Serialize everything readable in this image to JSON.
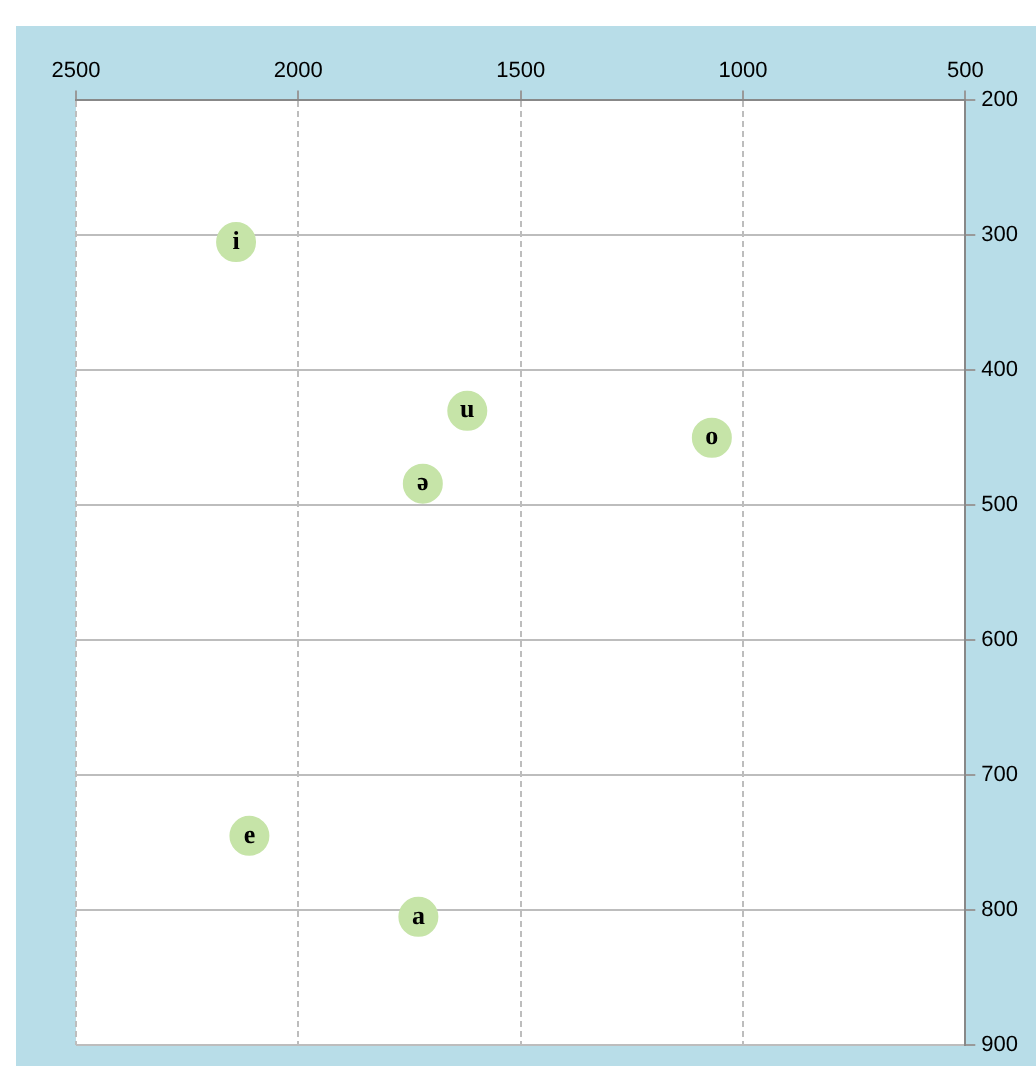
{
  "chart_data": {
    "type": "scatter",
    "marker": "circle",
    "grid": true,
    "legend": false,
    "xlim": [
      2500,
      500
    ],
    "xticks": [
      2500,
      2000,
      1500,
      1000,
      500
    ],
    "ylim": [
      900,
      200
    ],
    "yticks": [
      200,
      300,
      400,
      500,
      600,
      700,
      800,
      900
    ],
    "series": [
      {
        "name": "i",
        "color": "#c6e4a8",
        "x": [
          2140
        ],
        "values": [
          305
        ]
      },
      {
        "name": "u",
        "color": "#c6e4a8",
        "x": [
          1620
        ],
        "values": [
          430
        ]
      },
      {
        "name": "o",
        "color": "#c6e4a8",
        "x": [
          1070
        ],
        "values": [
          450
        ]
      },
      {
        "name": "ə",
        "color": "#c6e4a8",
        "x": [
          1720
        ],
        "values": [
          484
        ]
      },
      {
        "name": "e",
        "color": "#c6e4a8",
        "x": [
          2110
        ],
        "values": [
          745
        ]
      },
      {
        "name": "a",
        "color": "#c6e4a8",
        "x": [
          1730
        ],
        "values": [
          805
        ]
      }
    ]
  }
}
